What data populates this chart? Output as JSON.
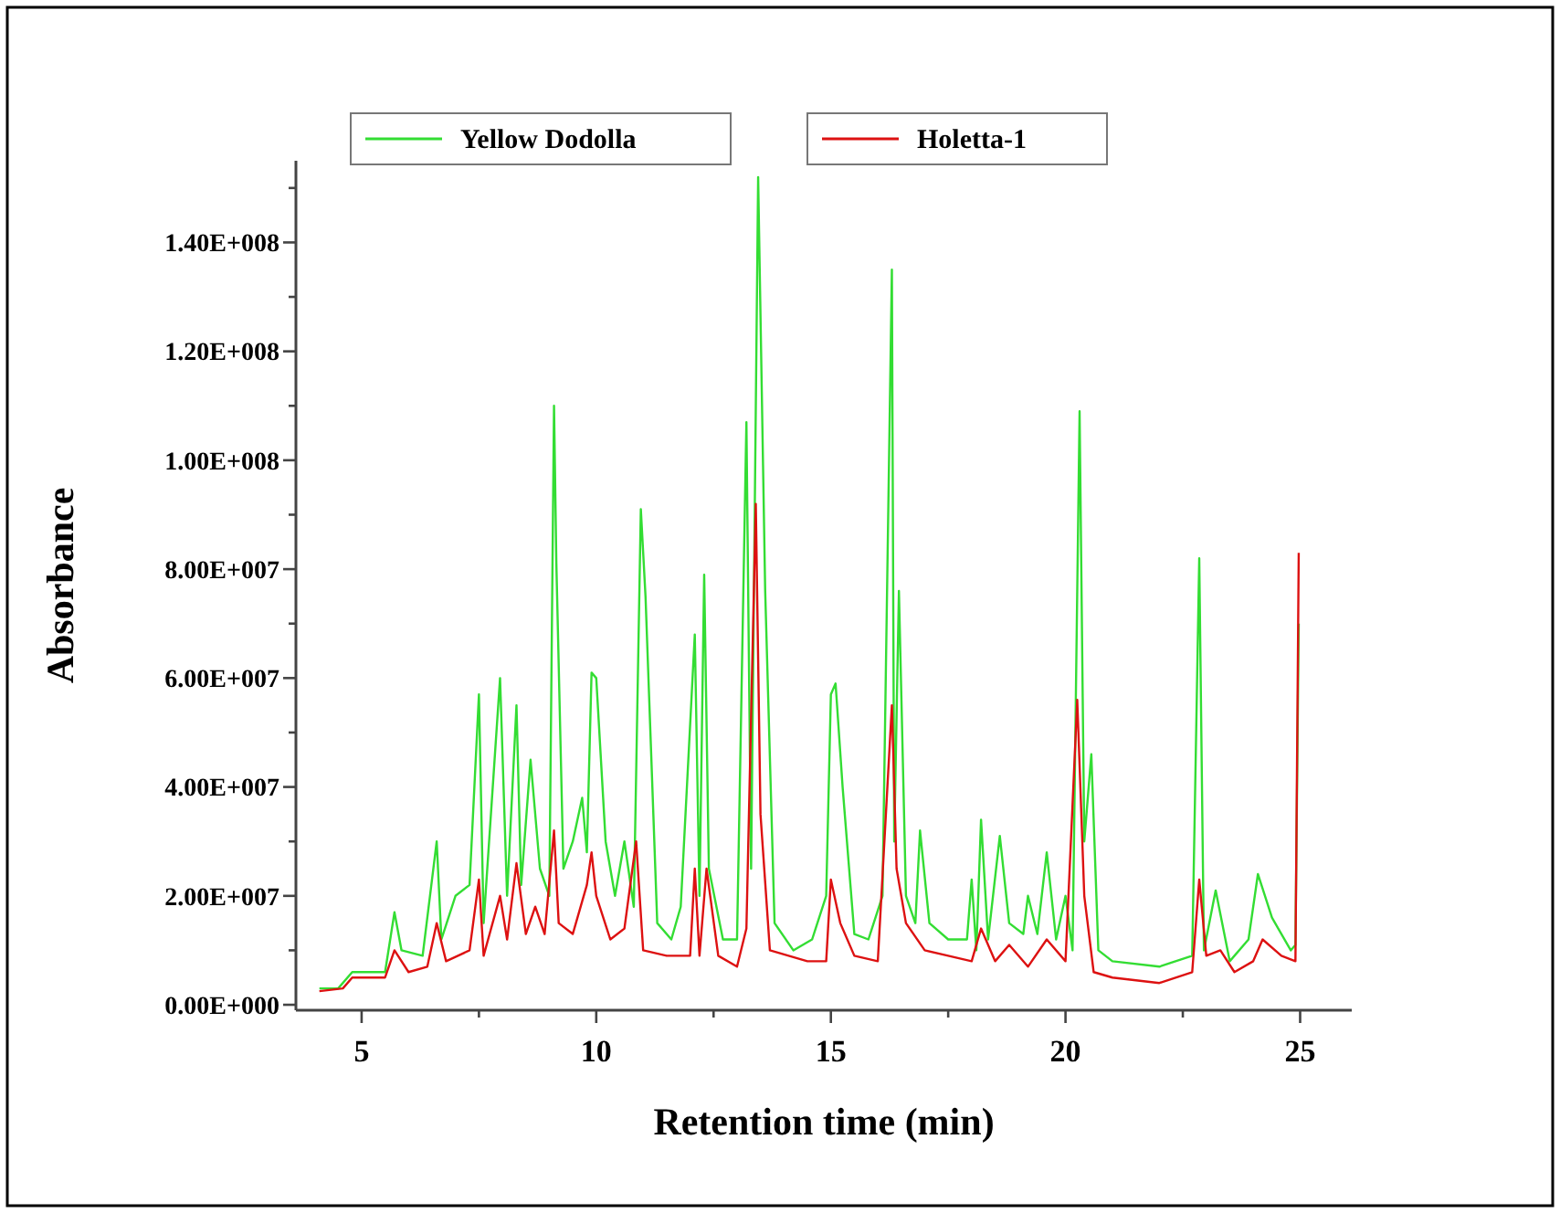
{
  "chart_data": {
    "type": "line",
    "xlabel": "Retention time (min)",
    "ylabel": "Absorbance",
    "legend": "top",
    "line_style": "solid",
    "marker": "none",
    "grid": false,
    "xlim": [
      3.6,
      26.1
    ],
    "ylim": [
      -1000000.0,
      155000000.0
    ],
    "xticks": [
      5,
      {
        "value": 7.5,
        "label": null
      },
      10,
      {
        "value": 12.5,
        "label": null
      },
      15,
      {
        "value": 17.5,
        "label": null
      },
      20,
      {
        "value": 22.5,
        "label": null
      },
      25
    ],
    "yticks": [
      {
        "value": 0,
        "label": "0.00E+000"
      },
      {
        "value": 10000000.0,
        "label": null
      },
      {
        "value": 20000000.0,
        "label": "2.00E+007"
      },
      {
        "value": 30000000.0,
        "label": null
      },
      {
        "value": 40000000.0,
        "label": "4.00E+007"
      },
      {
        "value": 50000000.0,
        "label": null
      },
      {
        "value": 60000000.0,
        "label": "6.00E+007"
      },
      {
        "value": 70000000.0,
        "label": null
      },
      {
        "value": 80000000.0,
        "label": "8.00E+007"
      },
      {
        "value": 90000000.0,
        "label": null
      },
      {
        "value": 100000000.0,
        "label": "1.00E+008"
      },
      {
        "value": 110000000.0,
        "label": null
      },
      {
        "value": 120000000.0,
        "label": "1.20E+008"
      },
      {
        "value": 130000000.0,
        "label": null
      },
      {
        "value": 140000000.0,
        "label": "1.40E+008"
      },
      {
        "value": 150000000.0,
        "label": null
      }
    ],
    "series": [
      {
        "name": "Yellow Dodolla",
        "color": "#33dd33",
        "x": [
          4.1,
          4.5,
          4.8,
          5.5,
          5.7,
          5.85,
          6.3,
          6.6,
          6.7,
          7.0,
          7.3,
          7.5,
          7.6,
          7.95,
          8.1,
          8.3,
          8.4,
          8.6,
          8.8,
          9.0,
          9.1,
          9.15,
          9.3,
          9.5,
          9.7,
          9.8,
          9.9,
          10.0,
          10.2,
          10.4,
          10.6,
          10.8,
          10.95,
          11.05,
          11.3,
          11.6,
          11.8,
          12.1,
          12.2,
          12.3,
          12.4,
          12.7,
          13.0,
          13.2,
          13.3,
          13.45,
          13.6,
          13.8,
          14.2,
          14.6,
          14.9,
          15.0,
          15.1,
          15.25,
          15.5,
          15.8,
          16.1,
          16.3,
          16.35,
          16.45,
          16.6,
          16.8,
          16.9,
          17.1,
          17.5,
          17.9,
          18.0,
          18.1,
          18.2,
          18.35,
          18.6,
          18.8,
          19.1,
          19.2,
          19.4,
          19.6,
          19.8,
          20.0,
          20.15,
          20.3,
          20.4,
          20.55,
          20.7,
          21.0,
          22.0,
          22.7,
          22.85,
          22.95,
          23.2,
          23.5,
          23.9,
          24.1,
          24.4,
          24.8,
          24.9,
          24.97
        ],
        "values": [
          3000000.0,
          3000000.0,
          6000000.0,
          6000000.0,
          17000000.0,
          10000000.0,
          9000000.0,
          30000000.0,
          12000000.0,
          20000000.0,
          22000000.0,
          57000000.0,
          15000000.0,
          60000000.0,
          20000000.0,
          55000000.0,
          22000000.0,
          45000000.0,
          25000000.0,
          20000000.0,
          110000000.0,
          81000000.0,
          25000000.0,
          30000000.0,
          38000000.0,
          28000000.0,
          61000000.0,
          60000000.0,
          30000000.0,
          20000000.0,
          30000000.0,
          18000000.0,
          91000000.0,
          75000000.0,
          15000000.0,
          12000000.0,
          18000000.0,
          68000000.0,
          20000000.0,
          79000000.0,
          25000000.0,
          12000000.0,
          12000000.0,
          107000000.0,
          25000000.0,
          152000000.0,
          76000000.0,
          15000000.0,
          10000000.0,
          12000000.0,
          20000000.0,
          57000000.0,
          59000000.0,
          40000000.0,
          13000000.0,
          12000000.0,
          20000000.0,
          135000000.0,
          30000000.0,
          76000000.0,
          20000000.0,
          15000000.0,
          32000000.0,
          15000000.0,
          12000000.0,
          12000000.0,
          23000000.0,
          10000000.0,
          34000000.0,
          12000000.0,
          31000000.0,
          15000000.0,
          13000000.0,
          20000000.0,
          13000000.0,
          28000000.0,
          12000000.0,
          20000000.0,
          10000000.0,
          109000000.0,
          30000000.0,
          46000000.0,
          10000000.0,
          8000000.0,
          7000000.0,
          9000000.0,
          82000000.0,
          10000000.0,
          21000000.0,
          8000000.0,
          12000000.0,
          24000000.0,
          16000000.0,
          10000000.0,
          11000000.0,
          70000000.0
        ]
      },
      {
        "name": "Holetta-1",
        "color": "#dd1111",
        "x": [
          4.1,
          4.6,
          4.8,
          5.5,
          5.7,
          6.0,
          6.4,
          6.6,
          6.8,
          7.3,
          7.5,
          7.6,
          7.95,
          8.1,
          8.3,
          8.5,
          8.7,
          8.9,
          9.1,
          9.2,
          9.5,
          9.8,
          9.9,
          10.0,
          10.3,
          10.6,
          10.85,
          11.0,
          11.5,
          12.0,
          12.1,
          12.2,
          12.35,
          12.6,
          13.0,
          13.2,
          13.4,
          13.5,
          13.7,
          14.5,
          14.9,
          15.0,
          15.2,
          15.5,
          16.0,
          16.3,
          16.4,
          16.6,
          17.0,
          17.5,
          18.0,
          18.2,
          18.5,
          18.8,
          19.2,
          19.6,
          20.0,
          20.25,
          20.4,
          20.6,
          21.0,
          22.0,
          22.7,
          22.85,
          23.0,
          23.3,
          23.6,
          24.0,
          24.2,
          24.6,
          24.9,
          24.97
        ],
        "values": [
          2500000.0,
          3000000.0,
          5000000.0,
          5000000.0,
          10000000.0,
          6000000.0,
          7000000.0,
          15000000.0,
          8000000.0,
          10000000.0,
          23000000.0,
          9000000.0,
          20000000.0,
          12000000.0,
          26000000.0,
          13000000.0,
          18000000.0,
          13000000.0,
          32000000.0,
          15000000.0,
          13000000.0,
          22000000.0,
          28000000.0,
          20000000.0,
          12000000.0,
          14000000.0,
          30000000.0,
          10000000.0,
          9000000.0,
          9000000.0,
          25000000.0,
          9000000.0,
          25000000.0,
          9000000.0,
          7000000.0,
          14000000.0,
          92000000.0,
          35000000.0,
          10000000.0,
          8000000.0,
          8000000.0,
          23000000.0,
          15000000.0,
          9000000.0,
          8000000.0,
          55000000.0,
          25000000.0,
          15000000.0,
          10000000.0,
          9000000.0,
          8000000.0,
          14000000.0,
          8000000.0,
          11000000.0,
          7000000.0,
          12000000.0,
          8000000.0,
          56000000.0,
          20000000.0,
          6000000.0,
          5000000.0,
          4000000.0,
          6000000.0,
          23000000.0,
          9000000.0,
          10000000.0,
          6000000.0,
          8000000.0,
          12000000.0,
          9000000.0,
          8000000.0,
          83000000.0
        ]
      }
    ]
  }
}
